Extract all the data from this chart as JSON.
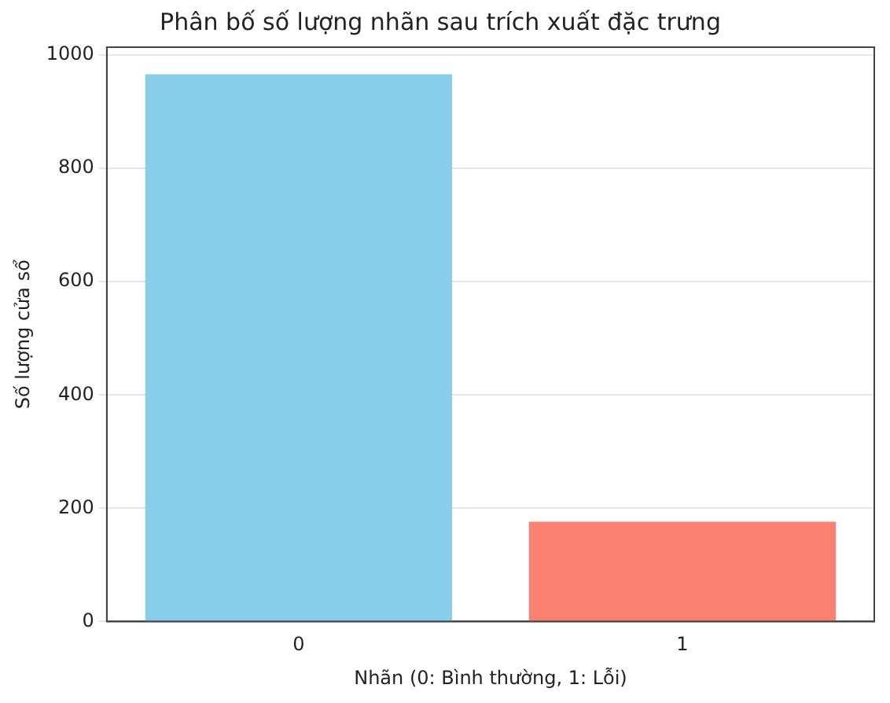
{
  "chart_data": {
    "type": "bar",
    "title": "Phân bố số lượng nhãn sau trích xuất đặc trưng",
    "xlabel": "Nhãn (0: Bình thường, 1: Lỗi)",
    "ylabel": "Số lượng cửa sổ",
    "categories": [
      "0",
      "1"
    ],
    "values": [
      966,
      176
    ],
    "colors": [
      "#87ceeb",
      "#fa8072"
    ],
    "ylim": [
      0,
      1014
    ],
    "yticks": [
      0,
      200,
      400,
      600,
      800,
      1000
    ],
    "grid": "y"
  }
}
